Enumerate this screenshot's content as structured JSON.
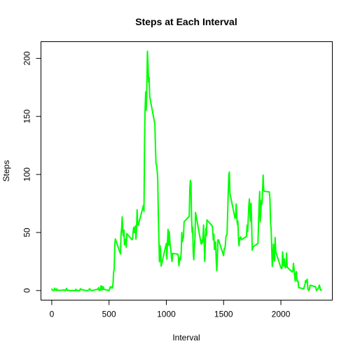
{
  "chart_data": {
    "type": "line",
    "title": "Steps at Each Interval",
    "xlabel": "Interval",
    "ylabel": "Steps",
    "color": "#00ff00",
    "xlim": [
      -94.2,
      2449.2
    ],
    "ylim": [
      -8.25,
      214.4
    ],
    "xticks": [
      0,
      500,
      1000,
      1500,
      2000
    ],
    "yticks": [
      0,
      50,
      100,
      150,
      200
    ],
    "x": [
      0,
      5,
      10,
      15,
      20,
      25,
      30,
      35,
      40,
      45,
      50,
      55,
      100,
      105,
      110,
      115,
      120,
      125,
      130,
      135,
      140,
      145,
      150,
      155,
      200,
      205,
      210,
      215,
      220,
      225,
      230,
      235,
      240,
      245,
      250,
      255,
      300,
      305,
      310,
      315,
      320,
      325,
      330,
      335,
      340,
      345,
      350,
      355,
      400,
      405,
      410,
      415,
      420,
      425,
      430,
      435,
      440,
      445,
      450,
      455,
      500,
      505,
      510,
      515,
      520,
      525,
      530,
      535,
      540,
      545,
      550,
      555,
      600,
      605,
      610,
      615,
      620,
      625,
      630,
      635,
      640,
      645,
      650,
      655,
      700,
      705,
      710,
      715,
      720,
      725,
      730,
      735,
      740,
      745,
      750,
      755,
      800,
      805,
      810,
      815,
      820,
      825,
      830,
      835,
      840,
      845,
      850,
      855,
      900,
      905,
      910,
      915,
      920,
      925,
      930,
      935,
      940,
      945,
      950,
      955,
      1000,
      1005,
      1010,
      1015,
      1020,
      1025,
      1030,
      1035,
      1040,
      1045,
      1050,
      1055,
      1100,
      1105,
      1110,
      1115,
      1120,
      1125,
      1130,
      1135,
      1140,
      1145,
      1150,
      1155,
      1200,
      1205,
      1210,
      1215,
      1220,
      1225,
      1230,
      1235,
      1240,
      1245,
      1250,
      1255,
      1300,
      1305,
      1310,
      1315,
      1320,
      1325,
      1330,
      1335,
      1340,
      1345,
      1350,
      1355,
      1400,
      1405,
      1410,
      1415,
      1420,
      1425,
      1430,
      1435,
      1440,
      1445,
      1450,
      1455,
      1500,
      1505,
      1510,
      1515,
      1520,
      1525,
      1530,
      1535,
      1540,
      1545,
      1550,
      1555,
      1600,
      1605,
      1610,
      1615,
      1620,
      1625,
      1630,
      1635,
      1640,
      1645,
      1650,
      1655,
      1700,
      1705,
      1710,
      1715,
      1720,
      1725,
      1730,
      1735,
      1740,
      1745,
      1750,
      1755,
      1800,
      1805,
      1810,
      1815,
      1820,
      1825,
      1830,
      1835,
      1840,
      1845,
      1850,
      1855,
      1900,
      1905,
      1910,
      1915,
      1920,
      1925,
      1930,
      1935,
      1940,
      1945,
      1950,
      1955,
      2000,
      2005,
      2010,
      2015,
      2020,
      2025,
      2030,
      2035,
      2040,
      2045,
      2050,
      2055,
      2100,
      2105,
      2110,
      2115,
      2120,
      2125,
      2130,
      2135,
      2140,
      2145,
      2150,
      2155,
      2200,
      2205,
      2210,
      2215,
      2220,
      2225,
      2230,
      2235,
      2240,
      2245,
      2250,
      2255,
      2300,
      2305,
      2310,
      2315,
      2320,
      2325,
      2330,
      2335,
      2340,
      2345,
      2350,
      2355
    ],
    "values": [
      1.72,
      0.34,
      0.13,
      0.15,
      0.08,
      2.09,
      0.53,
      0.87,
      0,
      1.47,
      0.3,
      0.13,
      0.32,
      0.68,
      0.15,
      0.34,
      0,
      1.11,
      1.83,
      0.17,
      0.17,
      0.38,
      0.26,
      0,
      0,
      0,
      1.13,
      0,
      0,
      0.13,
      0,
      0.23,
      0,
      0,
      1.55,
      0.94,
      0,
      0,
      0,
      0,
      0.21,
      0.62,
      1.62,
      0.58,
      0.49,
      0.08,
      0,
      0,
      1.19,
      0.94,
      2.57,
      0,
      0.34,
      0.36,
      4.11,
      0.66,
      3.49,
      0.83,
      3.11,
      1.11,
      0,
      1.57,
      3.0,
      2.25,
      3.32,
      2.96,
      2.09,
      6.06,
      16.02,
      18.34,
      39.45,
      44.49,
      31.49,
      49.26,
      53.77,
      63.45,
      49.96,
      47.08,
      52.15,
      39.34,
      44.02,
      44.17,
      37.36,
      49.04,
      43.81,
      44.38,
      50.51,
      54.51,
      49.92,
      50.98,
      55.68,
      44.32,
      52.26,
      69.55,
      57.85,
      56.15,
      73.38,
      68.21,
      129.43,
      157.53,
      171.15,
      155.4,
      177.3,
      206.17,
      195.92,
      179.57,
      183.4,
      167.02,
      143.45,
      124.04,
      109.11,
      108.11,
      103.72,
      95.96,
      66.21,
      45.23,
      24.79,
      38.75,
      34.98,
      21.06,
      40.57,
      26.98,
      42.42,
      52.66,
      38.92,
      50.79,
      44.28,
      37.42,
      34.7,
      28.34,
      25.09,
      31.94,
      31.36,
      29.68,
      21.32,
      25.55,
      28.38,
      26.47,
      33.43,
      49.98,
      42.04,
      44.61,
      46.04,
      59.19,
      63.87,
      87.7,
      94.85,
      92.77,
      63.4,
      50.17,
      54.47,
      32.42,
      26.53,
      37.74,
      45.06,
      67.28,
      42.34,
      39.88,
      43.26,
      40.98,
      46.25,
      56.43,
      42.75,
      25.13,
      39.96,
      53.55,
      47.32,
      60.81,
      55.75,
      51.96,
      43.58,
      48.7,
      35.47,
      37.55,
      41.85,
      27.51,
      17.11,
      26.08,
      43.62,
      43.77,
      30.02,
      36.08,
      35.49,
      38.85,
      45.96,
      47.75,
      48.13,
      65.32,
      82.91,
      98.66,
      102.11,
      83.96,
      62.13,
      64.13,
      74.55,
      63.17,
      56.91,
      59.77,
      43.87,
      38.57,
      44.66,
      45.45,
      46.21,
      43.68,
      46.62,
      56.3,
      50.72,
      61.23,
      72.72,
      78.94,
      68.94,
      59.66,
      75.09,
      56.51,
      34.77,
      37.45,
      40.68,
      58.02,
      74.7,
      85.32,
      59.26,
      67.77,
      77.7,
      74.25,
      85.34,
      99.45,
      86.58,
      85.6,
      84.87,
      77.83,
      58.04,
      53.36,
      36.32,
      20.72,
      27.4,
      40.02,
      30.21,
      25.55,
      45.66,
      33.53,
      19.62,
      19.02,
      19.34,
      33.34,
      26.81,
      21.17,
      27.3,
      21.34,
      19.55,
      21.32,
      32.3,
      20.15,
      15.94,
      17.23,
      23.45,
      19.25,
      12.45,
      8.02,
      14.66,
      16.3,
      8.68,
      7.79,
      8.13,
      2.62,
      1.45,
      3.68,
      4.81,
      8.51,
      7.08,
      8.7,
      9.75,
      2.21,
      0.32,
      0.11,
      1.6,
      4.6,
      3.3,
      2.85,
      0,
      0.83,
      0.96,
      1.58,
      2.6,
      4.7,
      3.3,
      0.64,
      0.23,
      1.08
    ]
  }
}
